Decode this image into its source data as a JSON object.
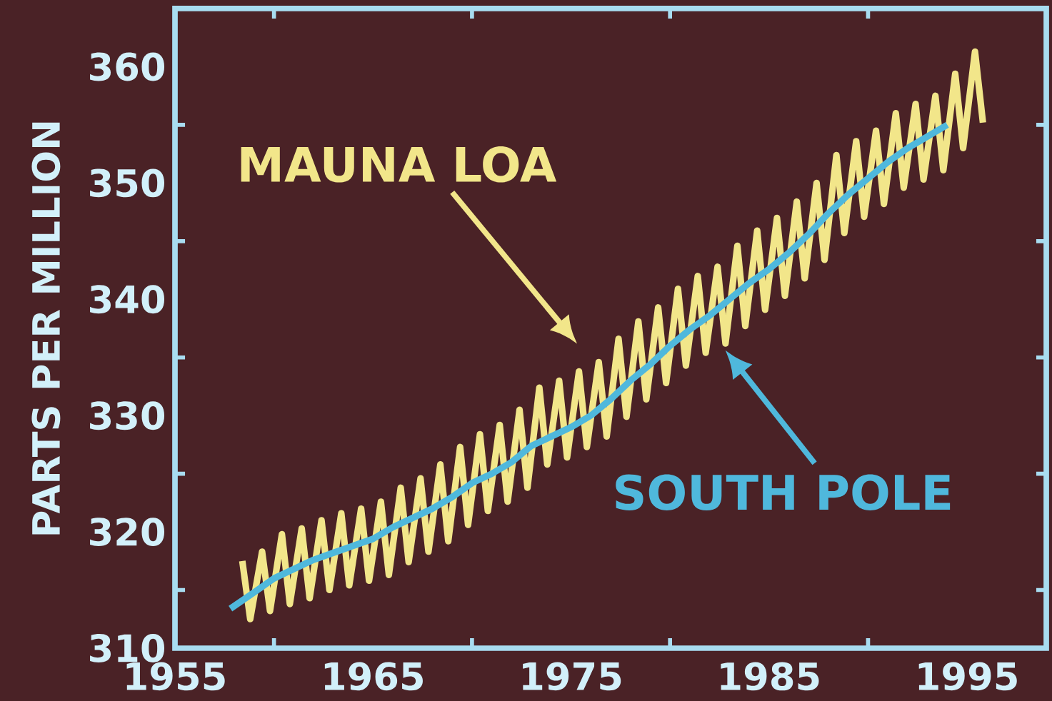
{
  "chart_data": {
    "type": "line",
    "ylabel": "PARTS PER MILLION",
    "xlim": [
      1955,
      1999
    ],
    "ylim": [
      310,
      365
    ],
    "xticks": [
      1955,
      1965,
      1975,
      1985,
      1995
    ],
    "yticks": [
      310,
      320,
      330,
      340,
      350,
      360
    ],
    "series": [
      {
        "name": "MAUNA LOA",
        "color": "#f2e68a",
        "x": [
          1958.4,
          1958.8,
          1959.4,
          1959.8,
          1960.4,
          1960.8,
          1961.4,
          1961.8,
          1962.4,
          1962.8,
          1963.4,
          1963.8,
          1964.4,
          1964.8,
          1965.4,
          1965.8,
          1966.4,
          1966.8,
          1967.4,
          1967.8,
          1968.4,
          1968.8,
          1969.4,
          1969.8,
          1970.4,
          1970.8,
          1971.4,
          1971.8,
          1972.4,
          1972.8,
          1973.4,
          1973.8,
          1974.4,
          1974.8,
          1975.4,
          1975.8,
          1976.4,
          1976.8,
          1977.4,
          1977.8,
          1978.4,
          1978.8,
          1979.4,
          1979.8,
          1980.4,
          1980.8,
          1981.4,
          1981.8,
          1982.4,
          1982.8,
          1983.4,
          1983.8,
          1984.4,
          1984.8,
          1985.4,
          1985.8,
          1986.4,
          1986.8,
          1987.4,
          1987.8,
          1988.4,
          1988.8,
          1989.4,
          1989.8,
          1990.4,
          1990.8,
          1991.4,
          1991.8,
          1992.4,
          1992.8,
          1993.4,
          1993.8,
          1994.4,
          1994.8,
          1995.4,
          1995.8
        ],
        "values": [
          317.5,
          312.5,
          318.3,
          313.2,
          319.8,
          313.8,
          320.3,
          314.3,
          321.0,
          315.0,
          321.6,
          315.4,
          322.0,
          315.8,
          322.6,
          316.3,
          323.8,
          317.4,
          324.6,
          318.3,
          325.8,
          319.2,
          327.3,
          320.6,
          328.4,
          321.8,
          329.2,
          322.6,
          330.5,
          323.8,
          332.4,
          325.8,
          333.0,
          326.4,
          333.8,
          327.3,
          334.6,
          328.2,
          336.6,
          329.9,
          338.1,
          331.4,
          339.3,
          332.8,
          340.9,
          334.3,
          342.0,
          335.4,
          342.8,
          336.2,
          344.6,
          337.7,
          345.9,
          339.1,
          347.0,
          340.3,
          348.4,
          341.8,
          350.0,
          343.4,
          352.4,
          345.7,
          353.6,
          347.1,
          354.5,
          348.2,
          356.0,
          349.6,
          356.8,
          350.3,
          357.5,
          351.1,
          359.4,
          353.0,
          361.3,
          355.2
        ]
      },
      {
        "name": "SOUTH POLE",
        "color": "#4fb8dc",
        "x": [
          1957.8,
          1959,
          1960,
          1961,
          1962,
          1963,
          1964,
          1965,
          1966,
          1967,
          1968,
          1969,
          1970,
          1971,
          1972,
          1973,
          1974,
          1975,
          1976,
          1977,
          1978,
          1979,
          1980,
          1981,
          1982,
          1983,
          1984,
          1985,
          1986,
          1987,
          1988,
          1989,
          1990,
          1991,
          1992,
          1993,
          1994
        ],
        "values": [
          313.4,
          314.8,
          316.0,
          316.8,
          317.6,
          318.2,
          318.8,
          319.4,
          320.4,
          321.2,
          322.0,
          323.0,
          324.2,
          325.0,
          326.0,
          327.4,
          328.2,
          329.0,
          330.0,
          331.4,
          333.0,
          334.4,
          336.0,
          337.4,
          338.6,
          340.0,
          341.4,
          342.6,
          344.0,
          345.6,
          347.4,
          349.0,
          350.4,
          351.8,
          353.0,
          354.0,
          355.0
        ]
      }
    ]
  }
}
